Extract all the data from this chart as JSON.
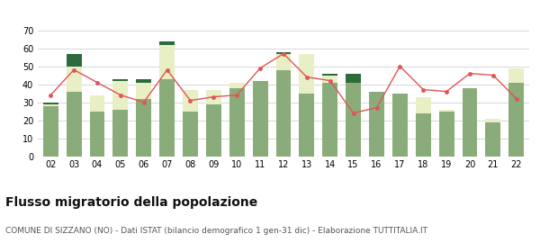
{
  "years": [
    "02",
    "03",
    "04",
    "05",
    "06",
    "07",
    "08",
    "09",
    "10",
    "11",
    "12",
    "13",
    "14",
    "15",
    "16",
    "17",
    "18",
    "19",
    "20",
    "21",
    "22"
  ],
  "iscritti_comuni": [
    28,
    36,
    25,
    26,
    32,
    43,
    25,
    29,
    38,
    42,
    48,
    35,
    41,
    41,
    36,
    35,
    24,
    25,
    38,
    19,
    41
  ],
  "iscritti_estero": [
    1,
    14,
    9,
    16,
    9,
    19,
    12,
    8,
    3,
    0,
    9,
    22,
    4,
    0,
    0,
    0,
    9,
    1,
    0,
    2,
    8
  ],
  "iscritti_altri": [
    1,
    7,
    0,
    1,
    2,
    2,
    0,
    0,
    0,
    0,
    1,
    0,
    1,
    5,
    0,
    0,
    0,
    0,
    0,
    0,
    0
  ],
  "cancellati": [
    34,
    48,
    41,
    34,
    30,
    48,
    31,
    33,
    34,
    49,
    57,
    44,
    42,
    24,
    27,
    50,
    37,
    36,
    46,
    45,
    32
  ],
  "color_comuni": "#8aac7a",
  "color_estero": "#e8efc5",
  "color_altri": "#2d6b3c",
  "color_cancellati": "#e05555",
  "color_grid": "#d0d0d0",
  "color_bg": "#ffffff",
  "ylim": [
    0,
    70
  ],
  "yticks": [
    0,
    10,
    20,
    30,
    40,
    50,
    60,
    70
  ],
  "title": "Flusso migratorio della popolazione",
  "subtitle": "COMUNE DI SIZZANO (NO) - Dati ISTAT (bilancio demografico 1 gen-31 dic) - Elaborazione TUTTITALIA.IT",
  "title_fontsize": 10,
  "subtitle_fontsize": 6.5,
  "tick_fontsize": 7,
  "legend_fontsize": 7
}
